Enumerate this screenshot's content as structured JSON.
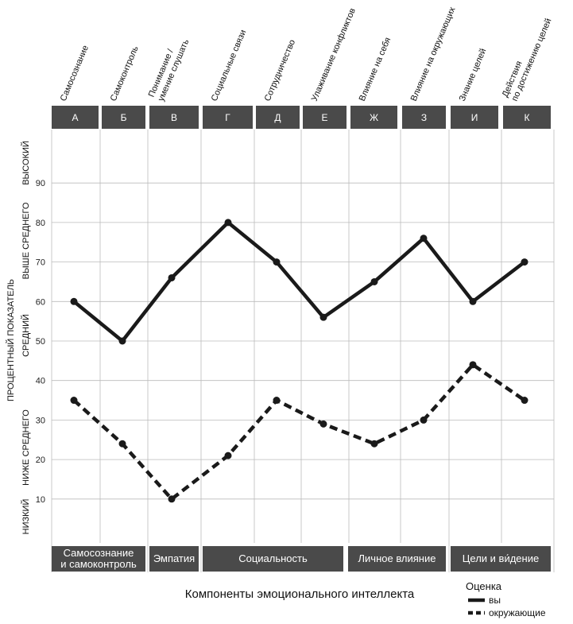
{
  "chart_data": {
    "type": "line",
    "xlabel": "Компоненты эмоционального интеллекта",
    "ylabel": "ПРОЦЕНТНЫЙ ПОКАЗАТЕЛЬ",
    "ylim": [
      0,
      100
    ],
    "yticks": [
      10,
      20,
      30,
      40,
      50,
      60,
      70,
      80,
      90
    ],
    "grid": true,
    "categories": [
      {
        "letter": "А",
        "label": [
          "Самосознание"
        ]
      },
      {
        "letter": "Б",
        "label": [
          "Самоконтроль"
        ]
      },
      {
        "letter": "В",
        "label": [
          "Понимание /",
          "умение слушать"
        ]
      },
      {
        "letter": "Г",
        "label": [
          "Социальные связи"
        ]
      },
      {
        "letter": "Д",
        "label": [
          "Сотрудничество"
        ]
      },
      {
        "letter": "Е",
        "label": [
          "Улаживание конфликтов"
        ]
      },
      {
        "letter": "Ж",
        "label": [
          "Влияние на себя"
        ]
      },
      {
        "letter": "З",
        "label": [
          "Влияние на окружающих"
        ]
      },
      {
        "letter": "И",
        "label": [
          "Знание целей"
        ]
      },
      {
        "letter": "К",
        "label": [
          "Действия",
          "по достижению целей"
        ]
      }
    ],
    "bands": [
      "НИЗКИЙ",
      "НИЖЕ СРЕДНЕГО",
      "СРЕДНИЙ",
      "ВЫШЕ СРЕДНЕГО",
      "ВЫСОКИЙ"
    ],
    "groups": [
      {
        "label": [
          "Самосознание",
          "и самоконтроль"
        ],
        "span": [
          0,
          1
        ]
      },
      {
        "label": [
          "Эмпатия"
        ],
        "span": [
          2,
          2
        ]
      },
      {
        "label": [
          "Социальность"
        ],
        "span": [
          3,
          5
        ]
      },
      {
        "label": [
          "Личное влияние"
        ],
        "span": [
          6,
          7
        ]
      },
      {
        "label": [
          "Цели и ви́дение"
        ],
        "span": [
          8,
          9
        ]
      }
    ],
    "series": [
      {
        "name": "вы",
        "style": "solid",
        "values": [
          60,
          50,
          66,
          80,
          70,
          56,
          65,
          76,
          60,
          70
        ]
      },
      {
        "name": "окружающие",
        "style": "dashed",
        "values": [
          35,
          24,
          10,
          21,
          35,
          29,
          24,
          30,
          44,
          35
        ]
      }
    ],
    "legend": {
      "title": "Оценка",
      "position": "bottom-right"
    }
  },
  "colors": {
    "header": "#4a4a4a",
    "line": "#1a1a1a",
    "grid": "#bbbbbb"
  }
}
